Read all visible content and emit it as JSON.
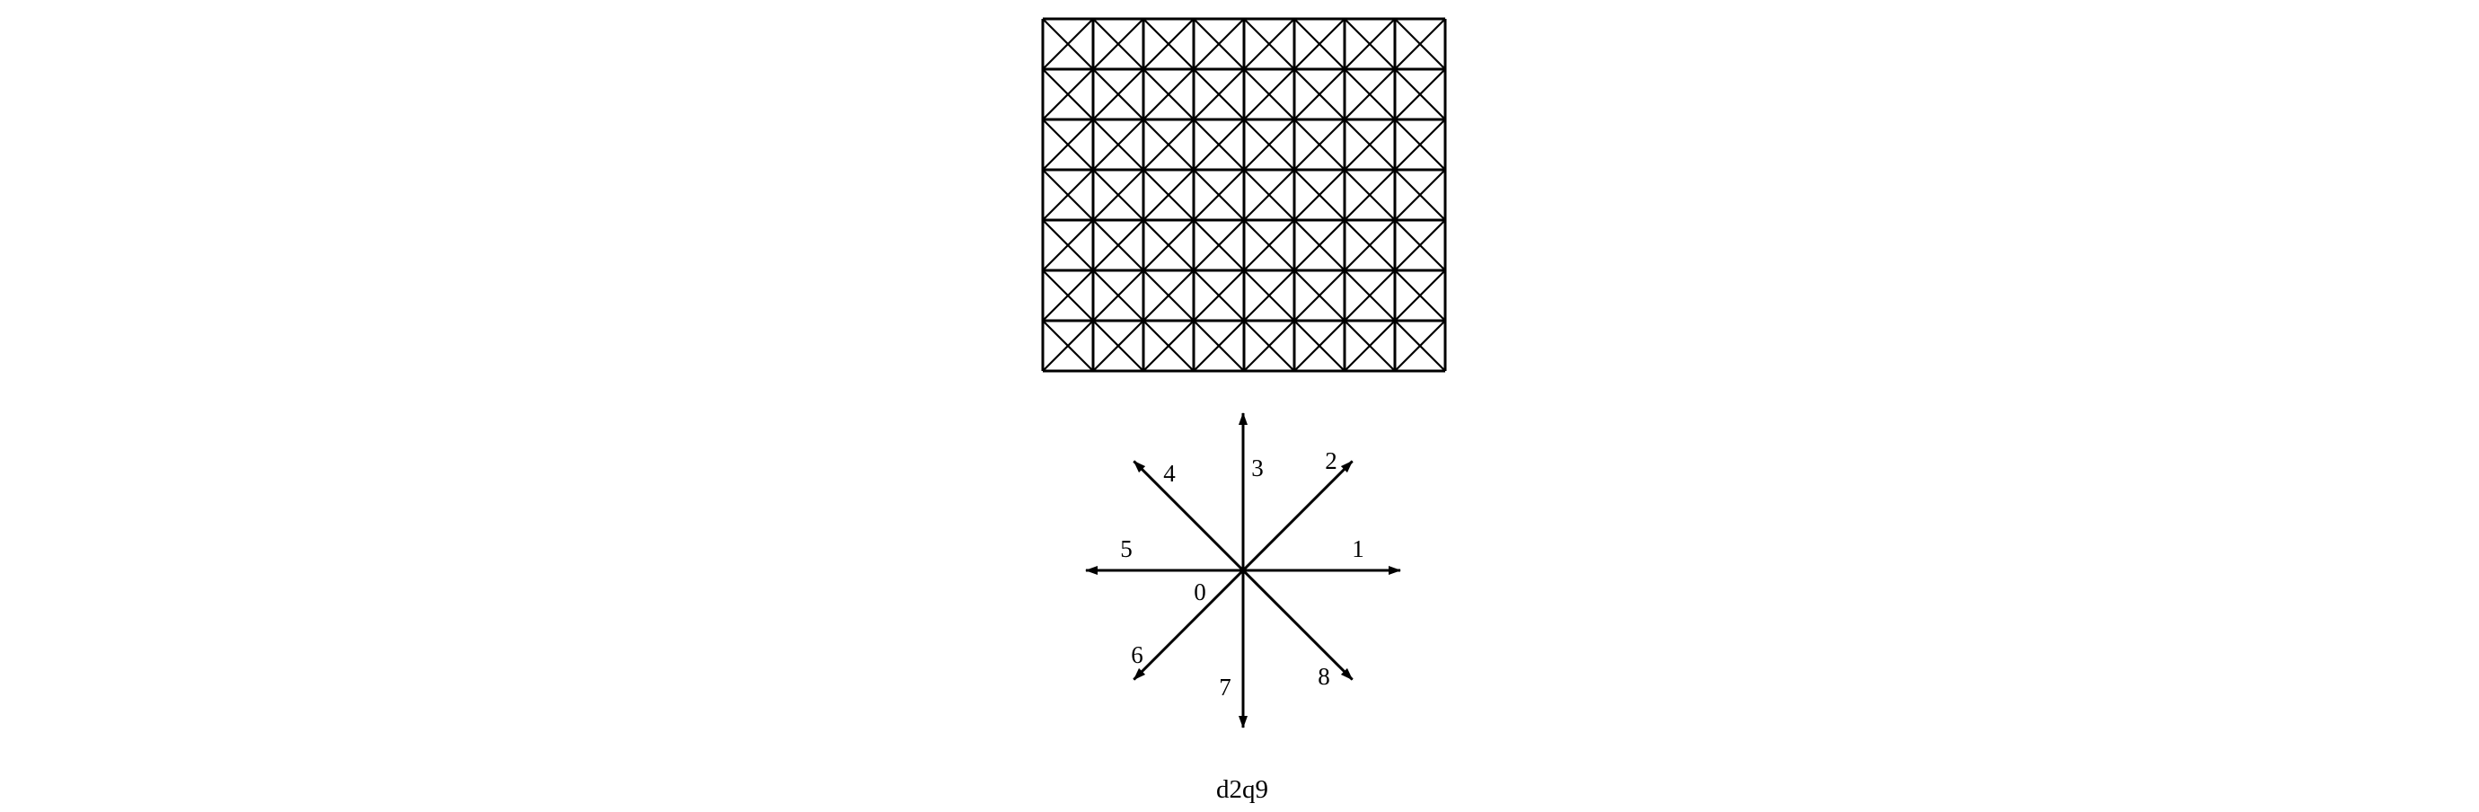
{
  "lattice": {
    "columns": 8,
    "rows": 7,
    "line_color": "#000000"
  },
  "directions": [
    {
      "index": "0",
      "vector": [
        0,
        0
      ]
    },
    {
      "index": "1",
      "vector": [
        1,
        0
      ]
    },
    {
      "index": "2",
      "vector": [
        1,
        1
      ]
    },
    {
      "index": "3",
      "vector": [
        0,
        1
      ]
    },
    {
      "index": "4",
      "vector": [
        -1,
        1
      ]
    },
    {
      "index": "5",
      "vector": [
        -1,
        0
      ]
    },
    {
      "index": "6",
      "vector": [
        -1,
        -1
      ]
    },
    {
      "index": "7",
      "vector": [
        0,
        -1
      ]
    },
    {
      "index": "8",
      "vector": [
        1,
        -1
      ]
    }
  ],
  "caption": "d2q9"
}
